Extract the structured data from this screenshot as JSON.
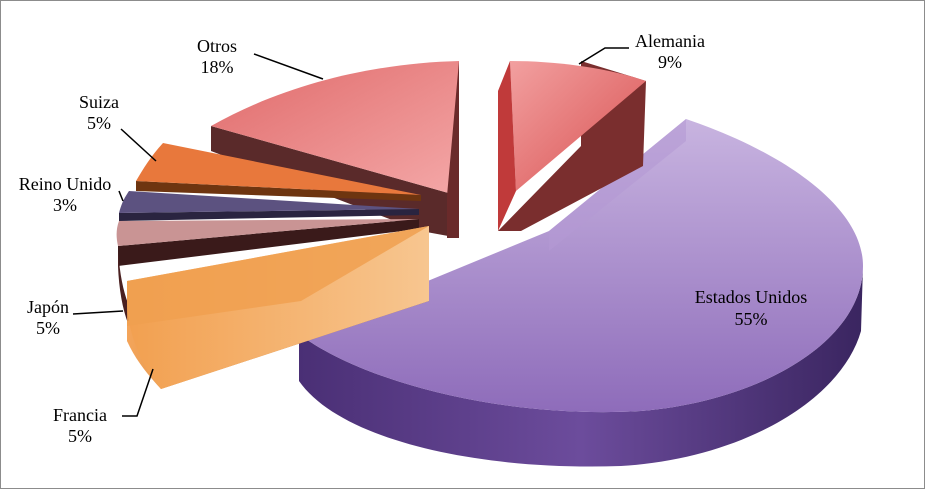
{
  "chart_data": {
    "type": "pie",
    "style": "3d-exploded",
    "title": "",
    "legend": "none",
    "slices": [
      {
        "name": "Estados Unidos",
        "value": 55,
        "label": "55%",
        "color": "#8f6fb8"
      },
      {
        "name": "Francia",
        "value": 5,
        "label": "5%",
        "color": "#f0a050"
      },
      {
        "name": "Japón",
        "value": 5,
        "label": "5%",
        "color": "#c99494"
      },
      {
        "name": "Reino Unido",
        "value": 3,
        "label": "3%",
        "color": "#5c5280"
      },
      {
        "name": "Suiza",
        "value": 5,
        "label": "5%",
        "color": "#e8783c"
      },
      {
        "name": "Otros",
        "value": 18,
        "label": "18%",
        "color": "#e88080"
      },
      {
        "name": "Alemania",
        "value": 9,
        "label": "9%",
        "color": "#e07070"
      }
    ]
  }
}
